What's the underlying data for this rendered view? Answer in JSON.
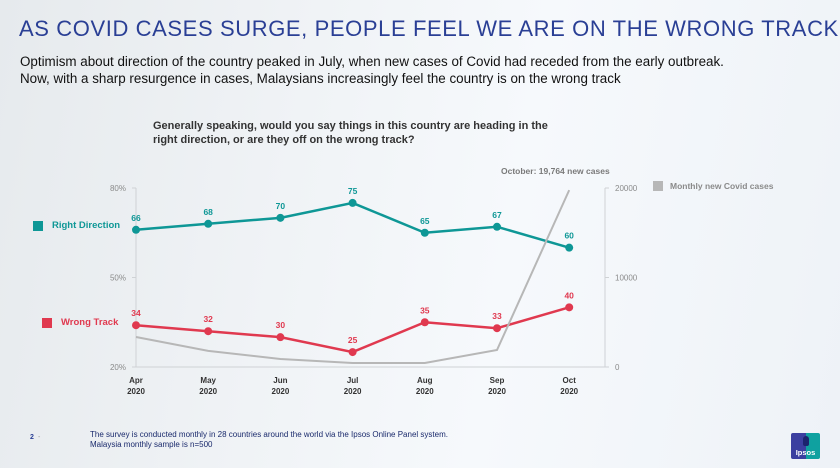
{
  "header": {
    "title": "AS COVID CASES SURGE, PEOPLE FEEL WE ARE ON THE WRONG TRACK",
    "subtitle_line1": "Optimism about direction of the country peaked in July, when new cases of Covid had receded from the early outbreak.",
    "subtitle_line2": "Now, with a sharp resurgence in cases, Malaysians increasingly feel the country is on the wrong track"
  },
  "chart_data": {
    "type": "line",
    "title": "Generally speaking, would you say things in this country are heading in the right direction, or are they off on the wrong track?",
    "title_line1": "Generally speaking, would you say things in this country are heading in the",
    "title_line2": "right direction, or are they off on the wrong track?",
    "categories": [
      {
        "month": "Apr",
        "year": "2020"
      },
      {
        "month": "May",
        "year": "2020"
      },
      {
        "month": "Jun",
        "year": "2020"
      },
      {
        "month": "Jul",
        "year": "2020"
      },
      {
        "month": "Aug",
        "year": "2020"
      },
      {
        "month": "Sep",
        "year": "2020"
      },
      {
        "month": "Oct",
        "year": "2020"
      }
    ],
    "left_axis": {
      "ticks": [
        "20%",
        "50%",
        "80%"
      ],
      "tick_values": [
        20,
        50,
        80
      ],
      "range": [
        20,
        80
      ]
    },
    "right_axis": {
      "ticks": [
        "0",
        "10000",
        "20000"
      ],
      "tick_values": [
        0,
        10000,
        20000
      ],
      "range": [
        0,
        20000
      ]
    },
    "series": [
      {
        "name": "Right Direction",
        "color": "#0e9796",
        "axis": "left",
        "values": [
          66,
          68,
          70,
          75,
          65,
          67,
          60
        ],
        "labels": [
          "66",
          "68",
          "70",
          "75",
          "65",
          "67",
          "60"
        ]
      },
      {
        "name": "Wrong Track",
        "color": "#e0394f",
        "axis": "left",
        "values": [
          34,
          32,
          30,
          25,
          35,
          33,
          40
        ],
        "labels": [
          "34",
          "32",
          "30",
          "25",
          "35",
          "33",
          "40"
        ]
      },
      {
        "name": "Monthly new Covid cases",
        "color": "#b7b7b7",
        "axis": "right",
        "values": [
          3350,
          1800,
          900,
          450,
          450,
          1900,
          19764
        ]
      }
    ],
    "annotation": "October: 19,764 new cases",
    "legend": {
      "right_direction": "Right Direction",
      "wrong_track": "Wrong Track",
      "cases": "Monthly new Covid cases"
    },
    "grid": false
  },
  "footer": {
    "page_number": "2",
    "note_line1": "The survey is conducted monthly in 28 countries around the world via the Ipsos Online Panel system.",
    "note_line2": "Malaysia monthly sample is n=500",
    "logo_text": "Ipsos"
  }
}
